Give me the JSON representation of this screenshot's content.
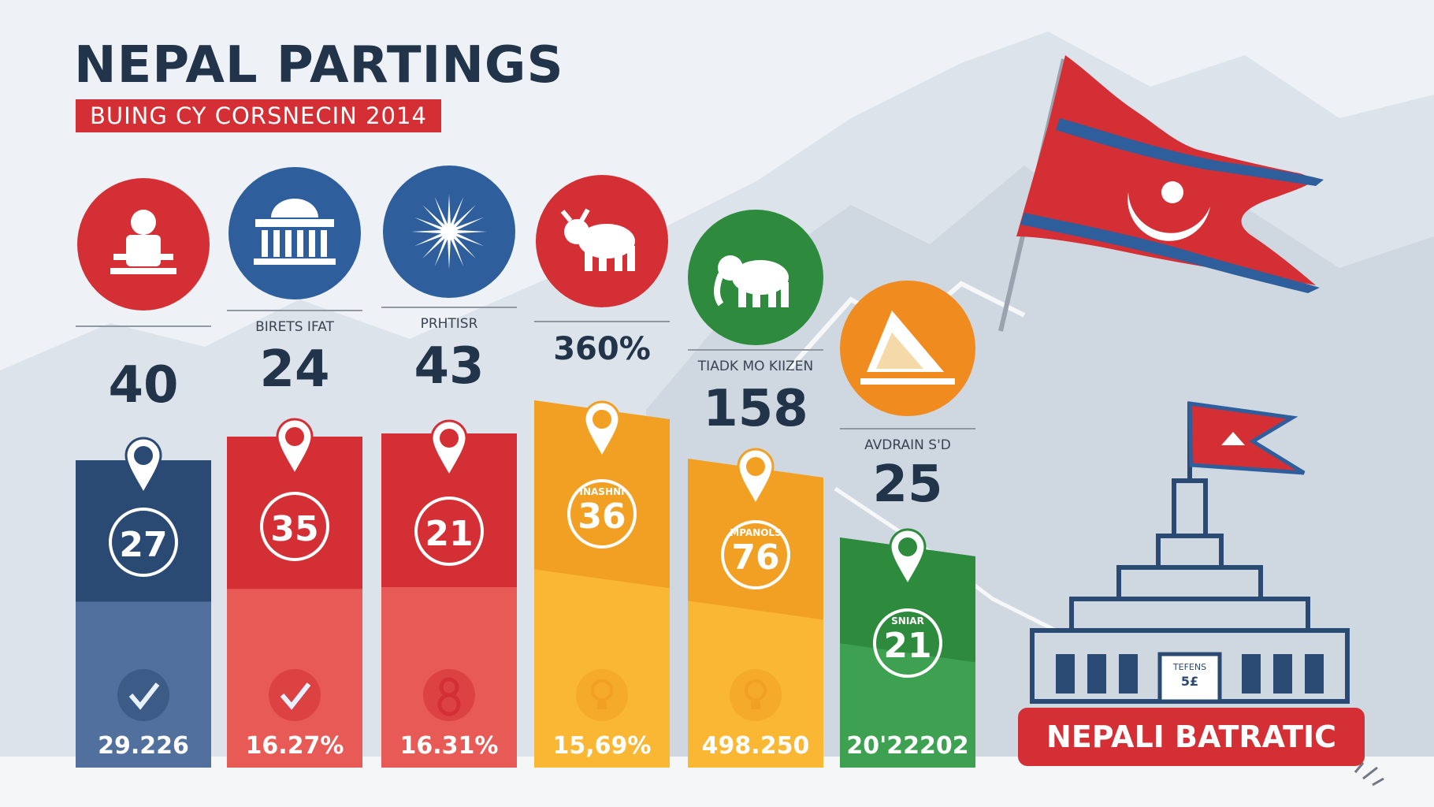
{
  "header": {
    "title": "NEPAL PARTINGS",
    "subtitle": "BUING CY CORSNECIN 2014"
  },
  "colors": {
    "navy": "#2b4a73",
    "red": "#d32f35",
    "orange": "#f2a023",
    "green": "#2e8b3e",
    "blue": "#2e5f9c",
    "title": "#22344a"
  },
  "chart_data": {
    "type": "bar",
    "items": [
      {
        "icon": "leader-icon",
        "icon_color": "#d32f35",
        "label": "",
        "stat": "40",
        "bar_color": "#2b4a73",
        "bar_light": "#51709e",
        "value": 27,
        "bar_label": "",
        "footer_icon": "check-icon",
        "footer": "29.226"
      },
      {
        "icon": "temple-icon",
        "icon_color": "#2e5f9c",
        "label": "BIRETS IFAT",
        "stat": "24",
        "bar_color": "#d32f35",
        "bar_light": "#e85a55",
        "value": 35,
        "bar_label": "",
        "footer_icon": "check-icon",
        "footer": "16.27%"
      },
      {
        "icon": "sun-icon",
        "icon_color": "#2e5f9c",
        "label": "PRHTISR",
        "stat": "43",
        "bar_color": "#d32f35",
        "bar_light": "#e85a55",
        "value": 21,
        "bar_label": "",
        "footer_icon": "eight-icon",
        "footer": "16.31%"
      },
      {
        "icon": "bull-icon",
        "icon_color": "#d32f35",
        "label": "",
        "stat": "360%",
        "bar_color": "#f2a023",
        "bar_light": "#f9b733",
        "value": 36,
        "bar_label": "INASHNI",
        "footer_icon": "bulb-icon",
        "footer": "15,69%"
      },
      {
        "icon": "elephant-icon",
        "icon_color": "#2e8b3e",
        "label": "TIADK MO KIIZEN",
        "stat": "158",
        "bar_color": "#f2a023",
        "bar_light": "#f9b733",
        "value": 76,
        "bar_label": "MPANOLS",
        "footer_icon": "bulb-icon",
        "footer": "498.250"
      },
      {
        "icon": "pyramid-icon",
        "icon_color": "#f08c1f",
        "label": "AVDRAIN S'D",
        "stat": "25",
        "bar_color": "#2e8b3e",
        "bar_light": "#3ea152",
        "value": 21,
        "bar_label": "SNIAR",
        "footer_icon": "",
        "footer": "20'22202"
      }
    ]
  },
  "building": {
    "door_label": "TEFENS",
    "door_value": "5£"
  },
  "badge": {
    "label": "NEPALI BATRATIC"
  }
}
